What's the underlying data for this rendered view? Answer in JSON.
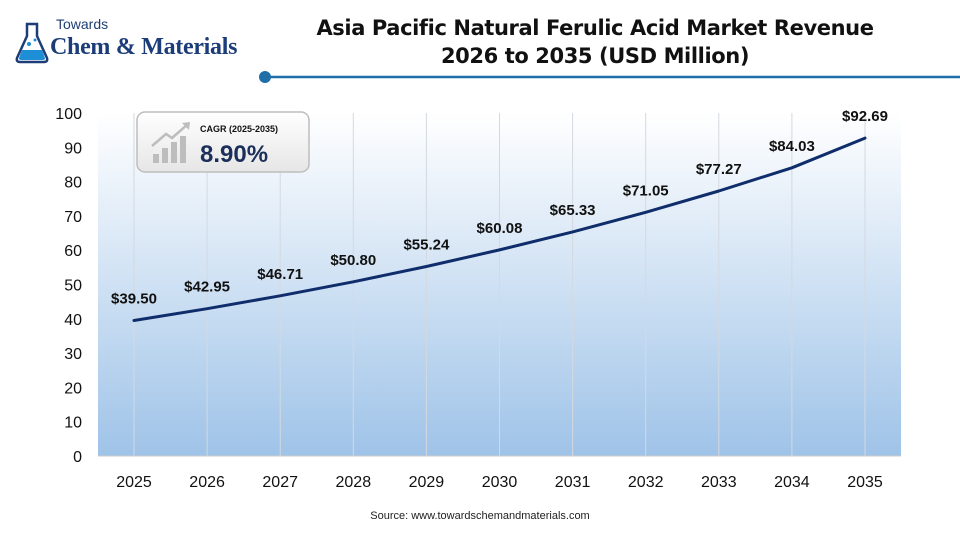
{
  "logo": {
    "line1": "Towards",
    "line2": "Chem & Materials"
  },
  "title": {
    "line1": "Asia Pacific Natural Ferulic Acid Market Revenue",
    "line2": "2026 to 2035 (USD Million)"
  },
  "cagr": {
    "label": "CAGR (2025-2035)",
    "value": "8.90%"
  },
  "source": "Source: www.towardschemandmaterials.com",
  "colors": {
    "line": "#0f2d6b",
    "accent": "#1e6fa8",
    "area_top": "#ffffff",
    "area_bottom": "#9fc3e8"
  },
  "chart_data": {
    "type": "line",
    "title": "Asia Pacific Natural Ferulic Acid Market Revenue 2026 to 2035 (USD Million)",
    "x": [
      "2025",
      "2026",
      "2027",
      "2028",
      "2029",
      "2030",
      "2031",
      "2032",
      "2033",
      "2034",
      "2035"
    ],
    "series": [
      {
        "values": [
          39.5,
          42.95,
          46.71,
          50.8,
          55.24,
          60.08,
          65.33,
          71.05,
          77.27,
          84.03,
          92.69
        ],
        "labels": [
          "$39.50",
          "$42.95",
          "$46.71",
          "$50.80",
          "$55.24",
          "$60.08",
          "$65.33",
          "$71.05",
          "$77.27",
          "$84.03",
          "$92.69"
        ]
      }
    ],
    "ylim": [
      0,
      100
    ],
    "yticks": [
      "0",
      "10",
      "20",
      "30",
      "40",
      "50",
      "60",
      "70",
      "80",
      "90",
      "100"
    ],
    "grid": "vertical",
    "legend": "none"
  }
}
